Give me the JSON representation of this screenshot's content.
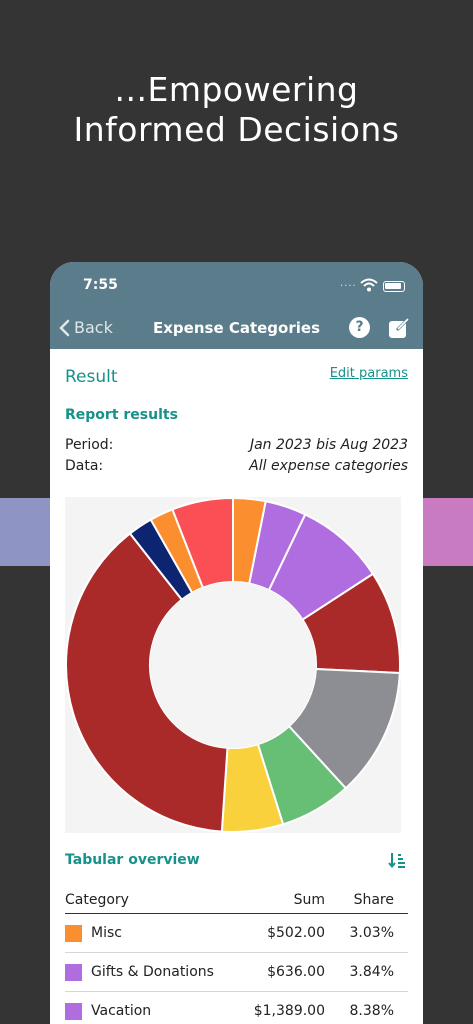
{
  "marketing": {
    "line1": "...Empowering",
    "line2": "Informed Decisions"
  },
  "status_bar": {
    "time": "7:55",
    "signal": "...."
  },
  "nav": {
    "back_label": "Back",
    "title": "Expense Categories",
    "help_label": "?"
  },
  "result": {
    "title": "Result",
    "edit_label": "Edit params"
  },
  "report": {
    "title": "Report results",
    "period_label": "Period:",
    "period_value": "Jan 2023 bis Aug 2023",
    "data_label": "Data:",
    "data_value": "All expense categories"
  },
  "chart_data": {
    "type": "pie",
    "donut": true,
    "values": [
      3.03,
      3.84,
      8.38,
      9.6,
      12.0,
      6.7,
      5.7,
      37.0,
      2.3,
      2.2,
      5.7
    ],
    "colors": [
      "#fb8f2f",
      "#b06de0",
      "#b06de0",
      "#aa2929",
      "#8d8e94",
      "#67bf75",
      "#f9d13d",
      "#aa2929",
      "#0d2570",
      "#fb8f2f",
      "#f94f55"
    ]
  },
  "tabular": {
    "title": "Tabular overview",
    "headers": {
      "category": "Category",
      "sum": "Sum",
      "share": "Share"
    },
    "rows": [
      {
        "category": "Misc",
        "sum": "$502.00",
        "share": "3.03%",
        "color": "#fb8f2f"
      },
      {
        "category": "Gifts & Donations",
        "sum": "$636.00",
        "share": "3.84%",
        "color": "#b06de0"
      },
      {
        "category": "Vacation",
        "sum": "$1,389.00",
        "share": "8.38%",
        "color": "#b06de0"
      }
    ]
  }
}
